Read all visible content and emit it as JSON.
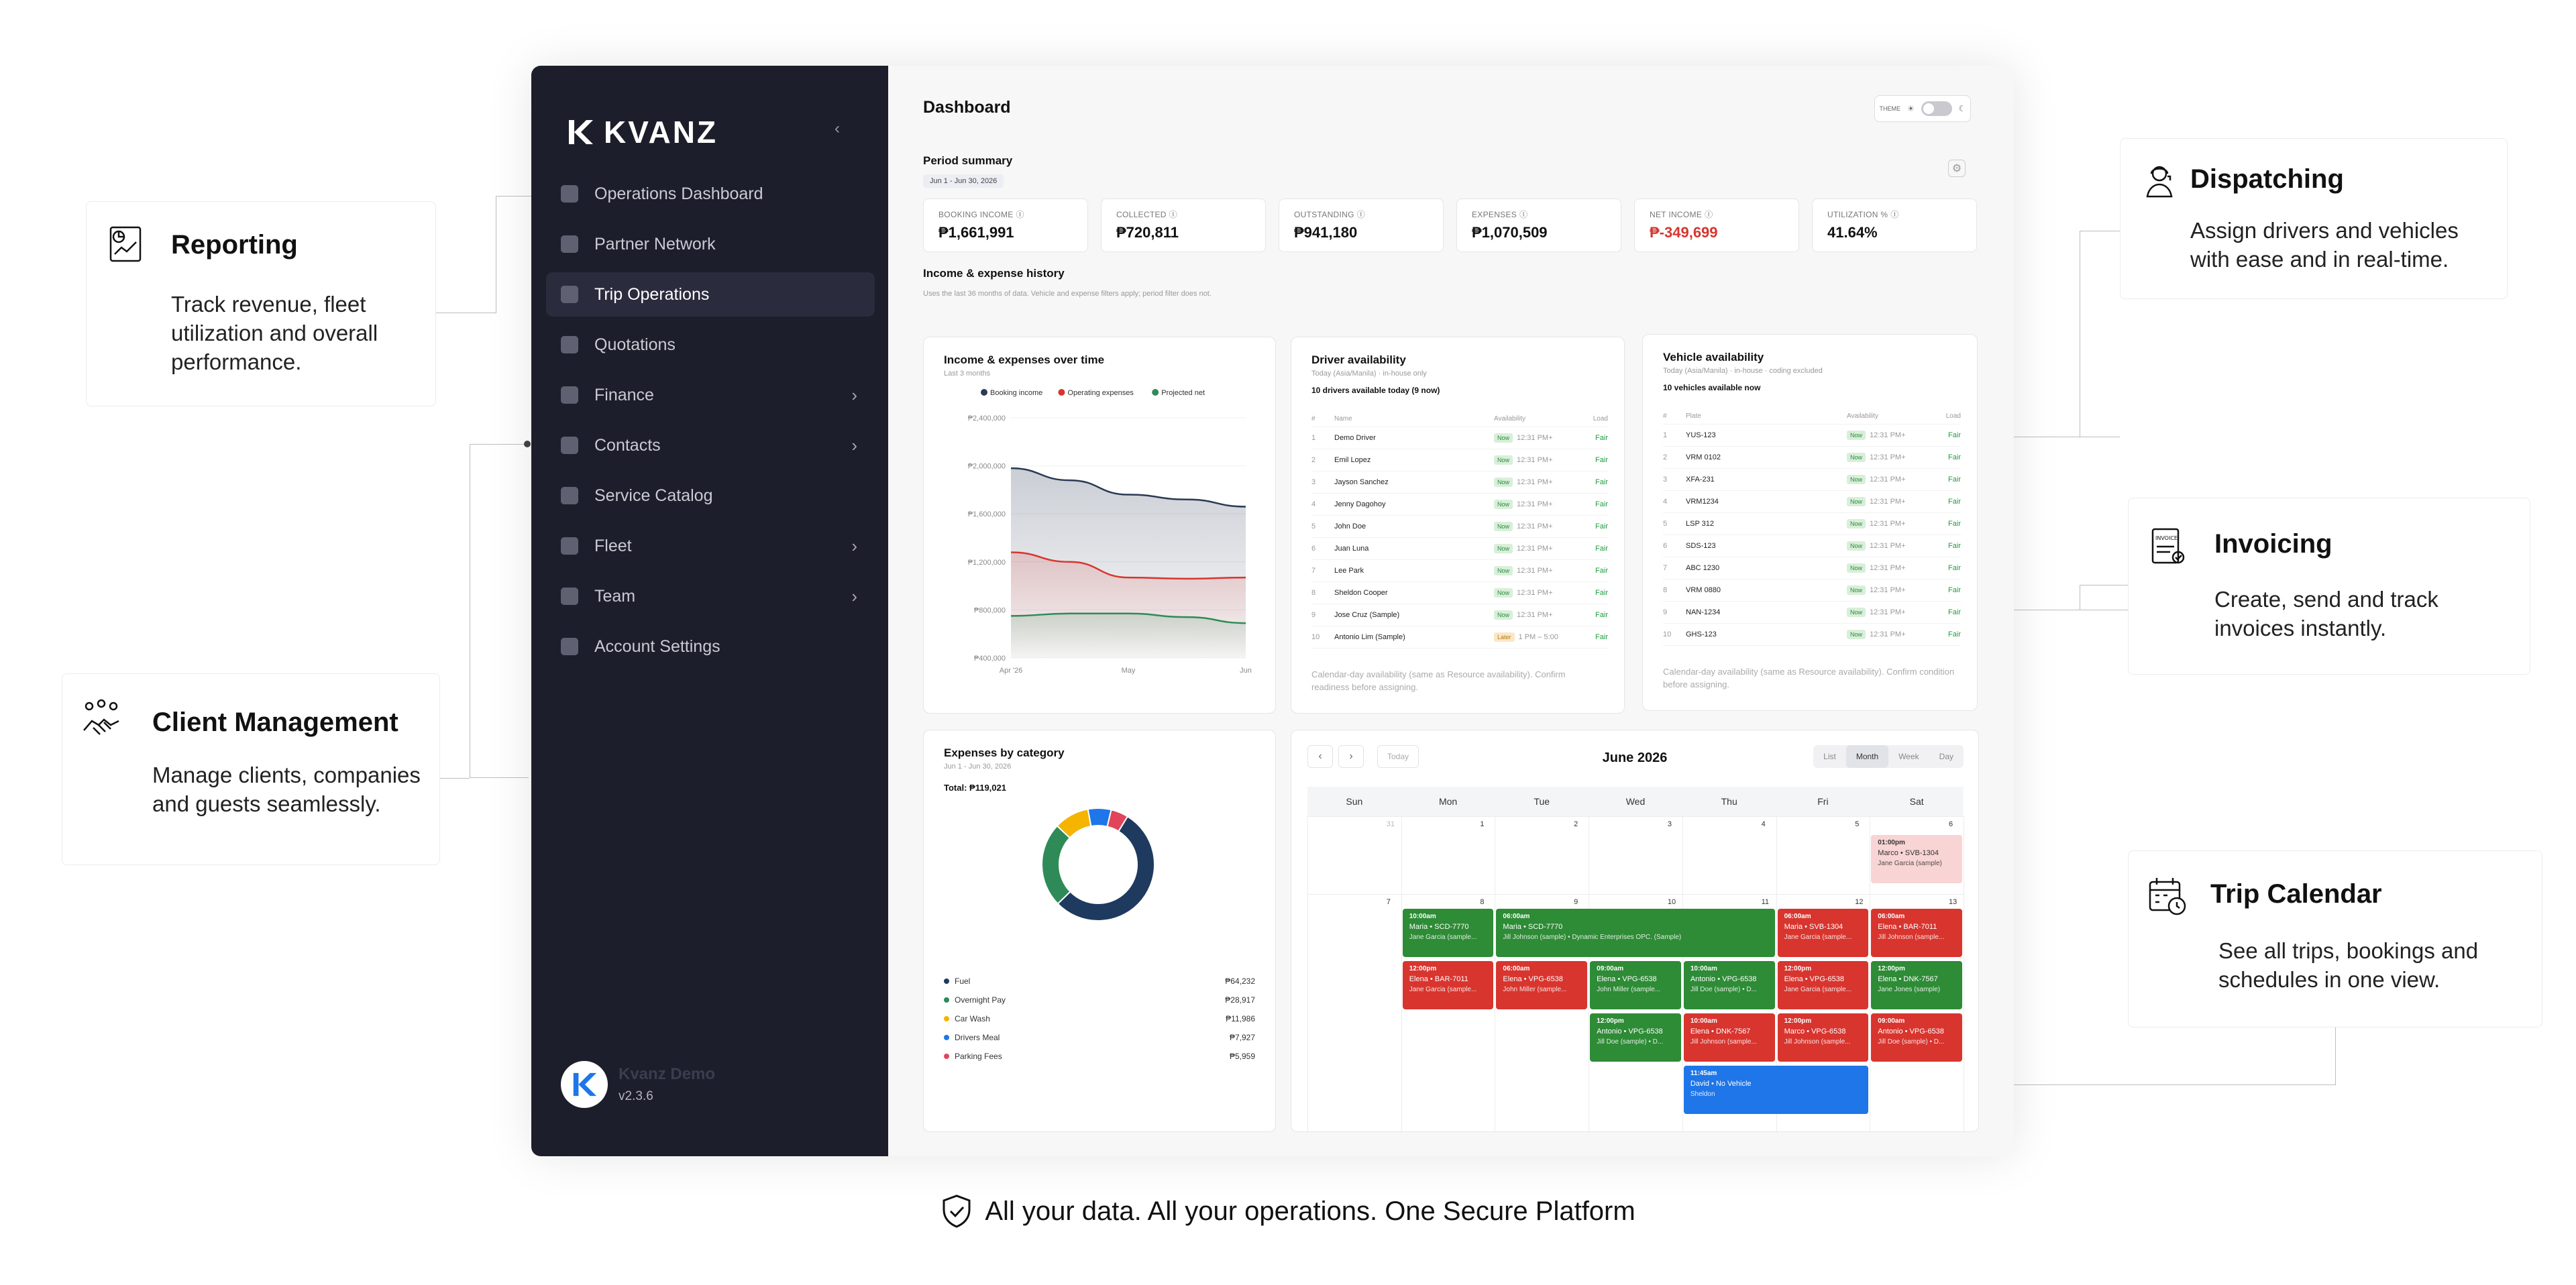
{
  "sidebar": {
    "logo_text": "KVANZ",
    "collapse_icon": "chevron-left-icon",
    "items": [
      {
        "label": "Operations Dashboard",
        "icon": "rocket-icon",
        "arrow": false,
        "active": false
      },
      {
        "label": "Partner Network",
        "icon": "building-icon",
        "arrow": false,
        "active": false
      },
      {
        "label": "Trip Operations",
        "icon": "refresh-icon",
        "arrow": false,
        "active": true
      },
      {
        "label": "Quotations",
        "icon": "document-icon",
        "arrow": false,
        "active": false
      },
      {
        "label": "Finance",
        "icon": "layers-icon",
        "arrow": true,
        "active": false
      },
      {
        "label": "Contacts",
        "icon": "user-circle-icon",
        "arrow": true,
        "active": false
      },
      {
        "label": "Service Catalog",
        "icon": "toggle-icon",
        "arrow": false,
        "active": false
      },
      {
        "label": "Fleet",
        "icon": "truck-icon",
        "arrow": true,
        "active": false
      },
      {
        "label": "Team",
        "icon": "team-icon",
        "arrow": true,
        "active": false
      },
      {
        "label": "Account Settings",
        "icon": "gear-icon",
        "arrow": false,
        "active": false
      }
    ],
    "profile": {
      "name": "Kvanz Demo",
      "version": "v2.3.6"
    }
  },
  "header": {
    "title": "Dashboard",
    "theme_label": "THEME"
  },
  "period": {
    "title": "Period summary",
    "range": "Jun 1 - Jun 30, 2026"
  },
  "stats": [
    {
      "label": "BOOKING INCOME",
      "value": "₱1,661,991",
      "color": "#111111"
    },
    {
      "label": "COLLECTED",
      "value": "₱720,811",
      "color": "#111111"
    },
    {
      "label": "OUTSTANDING",
      "value": "₱941,180",
      "color": "#111111"
    },
    {
      "label": "EXPENSES",
      "value": "₱1,070,509",
      "color": "#111111"
    },
    {
      "label": "NET INCOME",
      "value": "₱-349,699",
      "color": "#d8352f"
    },
    {
      "label": "UTILIZATION %",
      "value": "41.64%",
      "color": "#111111"
    }
  ],
  "history": {
    "title": "Income & expense history",
    "subtitle": "Uses the last 36 months of data. Vehicle and expense filters apply; period filter does not."
  },
  "income_chart": {
    "title": "Income & expenses over time",
    "subtitle": "Last 3 months"
  },
  "chart_data": {
    "type": "area",
    "title": "Income & expenses over time",
    "categories": [
      "Apr '26",
      "May",
      "Jun"
    ],
    "x": [
      0,
      0.25,
      0.5,
      0.75,
      1.0
    ],
    "yticks": [
      "₱2,400,000",
      "₱2,000,000",
      "₱1,600,000",
      "₱1,200,000",
      "₱800,000",
      "₱400,000"
    ],
    "ytick_values": [
      2400000,
      2000000,
      1600000,
      1200000,
      800000,
      400000
    ],
    "ylim": [
      400000,
      2400000
    ],
    "series": [
      {
        "name": "Booking income",
        "color": "#2b3a55",
        "values": [
          1980000,
          1880000,
          1760000,
          1720000,
          1660000
        ]
      },
      {
        "name": "Operating expenses",
        "color": "#d8352f",
        "values": [
          1280000,
          1200000,
          1070000,
          1060000,
          1070000
        ]
      },
      {
        "name": "Projected net",
        "color": "#2e8b57",
        "values": [
          750000,
          770000,
          770000,
          740000,
          690000
        ]
      }
    ],
    "legend": "top"
  },
  "drivers": {
    "title": "Driver availability",
    "subtitle": "Today (Asia/Manila) · in-house only",
    "summary": "10 drivers available today (9 now)",
    "headers": [
      "#",
      "Name",
      "Availability",
      "Load"
    ],
    "rows": [
      {
        "n": "1",
        "name": "Demo Driver",
        "badge": "Now",
        "time": "12:31 PM+",
        "load": "Fair"
      },
      {
        "n": "2",
        "name": "Emil Lopez",
        "badge": "Now",
        "time": "12:31 PM+",
        "load": "Fair"
      },
      {
        "n": "3",
        "name": "Jayson Sanchez",
        "badge": "Now",
        "time": "12:31 PM+",
        "load": "Fair"
      },
      {
        "n": "4",
        "name": "Jenny Dagohoy",
        "badge": "Now",
        "time": "12:31 PM+",
        "load": "Fair"
      },
      {
        "n": "5",
        "name": "John Doe",
        "badge": "Now",
        "time": "12:31 PM+",
        "load": "Fair"
      },
      {
        "n": "6",
        "name": "Juan Luna",
        "badge": "Now",
        "time": "12:31 PM+",
        "load": "Fair"
      },
      {
        "n": "7",
        "name": "Lee Park",
        "badge": "Now",
        "time": "12:31 PM+",
        "load": "Fair"
      },
      {
        "n": "8",
        "name": "Sheldon Cooper",
        "badge": "Now",
        "time": "12:31 PM+",
        "load": "Fair"
      },
      {
        "n": "9",
        "name": "Jose Cruz (Sample)",
        "badge": "Now",
        "time": "12:31 PM+",
        "load": "Fair"
      },
      {
        "n": "10",
        "name": "Antonio Lim (Sample)",
        "badge": "Later",
        "time": "1 PM – 5:00",
        "load": "Fair"
      }
    ],
    "footnote": "Calendar-day availability (same as Resource availability). Confirm readiness before assigning."
  },
  "vehicles": {
    "title": "Vehicle availability",
    "subtitle": "Today (Asia/Manila) · in-house · coding excluded",
    "summary": "10 vehicles available now",
    "headers": [
      "#",
      "Plate",
      "Availability",
      "Load"
    ],
    "rows": [
      {
        "n": "1",
        "name": "YUS-123",
        "badge": "Now",
        "time": "12:31 PM+",
        "load": "Fair"
      },
      {
        "n": "2",
        "name": "VRM 0102",
        "badge": "Now",
        "time": "12:31 PM+",
        "load": "Fair"
      },
      {
        "n": "3",
        "name": "XFA-231",
        "badge": "Now",
        "time": "12:31 PM+",
        "load": "Fair"
      },
      {
        "n": "4",
        "name": "VRM1234",
        "badge": "Now",
        "time": "12:31 PM+",
        "load": "Fair"
      },
      {
        "n": "5",
        "name": "LSP 312",
        "badge": "Now",
        "time": "12:31 PM+",
        "load": "Fair"
      },
      {
        "n": "6",
        "name": "SDS-123",
        "badge": "Now",
        "time": "12:31 PM+",
        "load": "Fair"
      },
      {
        "n": "7",
        "name": "ABC 1230",
        "badge": "Now",
        "time": "12:31 PM+",
        "load": "Fair"
      },
      {
        "n": "8",
        "name": "VRM 0880",
        "badge": "Now",
        "time": "12:31 PM+",
        "load": "Fair"
      },
      {
        "n": "9",
        "name": "NAN-1234",
        "badge": "Now",
        "time": "12:31 PM+",
        "load": "Fair"
      },
      {
        "n": "10",
        "name": "GHS-123",
        "badge": "Now",
        "time": "12:31 PM+",
        "load": "Fair"
      }
    ],
    "footnote": "Calendar-day availability (same as Resource availability). Confirm condition before assigning."
  },
  "expenses": {
    "title": "Expenses by category",
    "subtitle": "Jun 1 - Jun 30, 2026",
    "total": "Total: ₱119,021",
    "categories": [
      {
        "name": "Fuel",
        "amount": "₱64,232",
        "value": 64232,
        "color": "#1f3a5f"
      },
      {
        "name": "Overnight Pay",
        "amount": "₱28,917",
        "value": 28917,
        "color": "#2e8b57"
      },
      {
        "name": "Car Wash",
        "amount": "₱11,986",
        "value": 11986,
        "color": "#f4b400"
      },
      {
        "name": "Drivers Meal",
        "amount": "₱7,927",
        "value": 7927,
        "color": "#1e76e8"
      },
      {
        "name": "Parking Fees",
        "amount": "₱5,959",
        "value": 5959,
        "color": "#e0455a"
      }
    ]
  },
  "calendar": {
    "title": "June 2026",
    "today_label": "Today",
    "prev_icon": "chevron-left-icon",
    "next_icon": "chevron-right-icon",
    "views": [
      {
        "label": "List",
        "on": false
      },
      {
        "label": "Month",
        "on": true
      },
      {
        "label": "Week",
        "on": false
      },
      {
        "label": "Day",
        "on": false
      }
    ],
    "days": [
      "Sun",
      "Mon",
      "Tue",
      "Wed",
      "Thu",
      "Fri",
      "Sat"
    ],
    "week1": [
      "31",
      "1",
      "2",
      "3",
      "4",
      "5",
      "6"
    ],
    "week2": [
      "7",
      "8",
      "9",
      "10",
      "11",
      "12",
      "13"
    ],
    "events": [
      {
        "time": "01:00pm",
        "title": "Marco • SVB-1304",
        "who": "Jane Garcia (sample)",
        "color": "pink",
        "week": 0,
        "col": 6,
        "row": 0,
        "span": 1
      },
      {
        "time": "10:00am",
        "title": "Maria • SCD-7770",
        "who": "Jane Garcia (sample...",
        "color": "green",
        "week": 1,
        "col": 1,
        "row": 0,
        "span": 1
      },
      {
        "time": "06:00am",
        "title": "Maria • SCD-7770",
        "who": "Jill Johnson (sample) • Dynamic Enterprises OPC. (Sample)",
        "color": "green",
        "week": 1,
        "col": 2,
        "row": 0,
        "span": 3
      },
      {
        "time": "06:00am",
        "title": "Maria • SVB-1304",
        "who": "Jane Garcia (sample...",
        "color": "red",
        "week": 1,
        "col": 5,
        "row": 0,
        "span": 1
      },
      {
        "time": "06:00am",
        "title": "Elena • BAR-7011",
        "who": "Jill Johnson (sample...",
        "color": "red",
        "week": 1,
        "col": 6,
        "row": 0,
        "span": 1
      },
      {
        "time": "12:00pm",
        "title": "Elena • BAR-7011",
        "who": "Jane Garcia (sample...",
        "color": "red",
        "week": 1,
        "col": 1,
        "row": 1,
        "span": 1
      },
      {
        "time": "06:00am",
        "title": "Elena • VPG-6538",
        "who": "John Miller (sample...",
        "color": "red",
        "week": 1,
        "col": 2,
        "row": 1,
        "span": 1
      },
      {
        "time": "09:00am",
        "title": "Elena • VPG-6538",
        "who": "John Miller (sample...",
        "color": "green",
        "week": 1,
        "col": 3,
        "row": 1,
        "span": 1
      },
      {
        "time": "10:00am",
        "title": "Antonio • VPG-6538",
        "who": "Jill Doe (sample) • D...",
        "color": "green",
        "week": 1,
        "col": 4,
        "row": 1,
        "span": 1
      },
      {
        "time": "12:00pm",
        "title": "Elena • VPG-6538",
        "who": "Jane Garcia (sample...",
        "color": "red",
        "week": 1,
        "col": 5,
        "row": 1,
        "span": 1
      },
      {
        "time": "12:00pm",
        "title": "Elena • DNK-7567",
        "who": "Jane Jones (sample)",
        "color": "green",
        "week": 1,
        "col": 6,
        "row": 1,
        "span": 1
      },
      {
        "time": "12:00pm",
        "title": "Antonio • VPG-6538",
        "who": "Jill Doe (sample) • D...",
        "color": "green",
        "week": 1,
        "col": 3,
        "row": 2,
        "span": 1
      },
      {
        "time": "10:00am",
        "title": "Elena • DNK-7567",
        "who": "Jill Johnson (sample...",
        "color": "red",
        "week": 1,
        "col": 4,
        "row": 2,
        "span": 1
      },
      {
        "time": "12:00pm",
        "title": "Marco • VPG-6538",
        "who": "Jill Johnson (sample...",
        "color": "red",
        "week": 1,
        "col": 5,
        "row": 2,
        "span": 1
      },
      {
        "time": "09:00am",
        "title": "Antonio • VPG-6538",
        "who": "Jill Doe (sample) • D...",
        "color": "red",
        "week": 1,
        "col": 6,
        "row": 2,
        "span": 1
      },
      {
        "time": "11:45am",
        "title": "David • No Vehicle",
        "who": "Sheldon",
        "color": "blue",
        "week": 1,
        "col": 4,
        "row": 3,
        "span": 2
      }
    ]
  },
  "features": {
    "reporting": {
      "title": "Reporting",
      "desc": "Track revenue, fleet utilization and overall performance.",
      "icon": "report-chart-icon"
    },
    "client": {
      "title": "Client Management",
      "desc": "Manage clients, companies and guests seamlessly.",
      "icon": "handshake-icon"
    },
    "dispatching": {
      "title": "Dispatching",
      "desc": "Assign drivers and vehicles with ease and in real-time.",
      "icon": "dispatcher-icon"
    },
    "invoicing": {
      "title": "Invoicing",
      "desc": "Create, send and track invoices instantly.",
      "icon": "invoice-icon"
    },
    "calendar": {
      "title": "Trip Calendar",
      "desc": "See all trips, bookings and schedules in one view.",
      "icon": "calendar-clock-icon"
    }
  },
  "tagline": "All your data.  All your operations.  One Secure Platform"
}
